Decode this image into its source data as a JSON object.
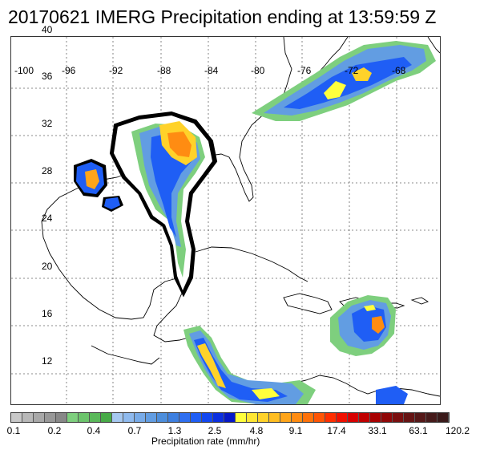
{
  "title": "20170621 IMERG Precipitation ending at 13:59:59 Z",
  "lon_labels": [
    "-100",
    "-96",
    "-92",
    "-88",
    "-84",
    "-80",
    "-76",
    "-72",
    "-68"
  ],
  "lat_labels": [
    "40",
    "36",
    "32",
    "28",
    "24",
    "20",
    "16",
    "12"
  ],
  "colorbar": {
    "labels": [
      "0.1",
      "0.2",
      "0.4",
      "0.7",
      "1.3",
      "2.5",
      "4.8",
      "9.1",
      "17.4",
      "33.1",
      "63.1",
      "120.2"
    ],
    "title": "Precipitation rate (mm/hr)",
    "colors": [
      "#c8c8c8",
      "#b8b8b8",
      "#a8a8a8",
      "#989898",
      "#888888",
      "#7ecf7e",
      "#6cc46c",
      "#5ab85a",
      "#48ab48",
      "#a6c8f0",
      "#8fbaee",
      "#78abe8",
      "#629de2",
      "#4d8edc",
      "#3d7fe0",
      "#2f6ff0",
      "#1f5ef5",
      "#1247f0",
      "#0b2fe0",
      "#0618c8",
      "#ffff3c",
      "#ffe633",
      "#ffd22a",
      "#ffbe22",
      "#ffa51a",
      "#ff8c12",
      "#ff720a",
      "#ff5505",
      "#ff2e00",
      "#f01000",
      "#d80000",
      "#c00000",
      "#a80000",
      "#900808",
      "#7a0f0f",
      "#661414",
      "#551818",
      "#461a1a",
      "#3a1a1a"
    ]
  }
}
